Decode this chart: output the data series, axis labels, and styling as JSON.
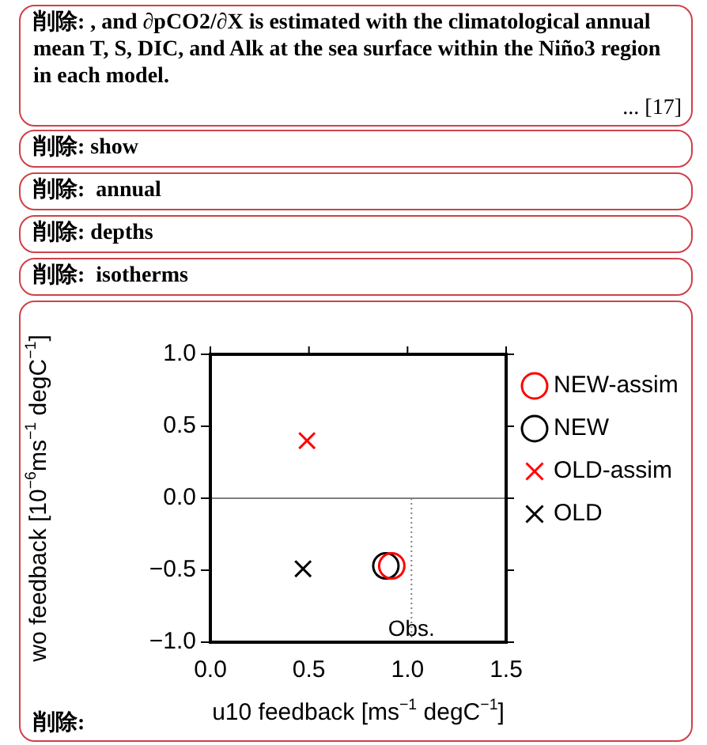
{
  "chart_data": {
    "type": "scatter",
    "xlabel": "u10 feedback [ms$^{−1}$ degC$^{−1}$]",
    "ylabel": "wo feedback [10$^{−6}$ms$^{−1}$ degC$^{−1}$]",
    "xlim": [
      0,
      1.5
    ],
    "xticks": [
      {
        "value": 0,
        "label": "0.0"
      },
      {
        "value": 0.5,
        "label": "0.5"
      },
      {
        "value": 1,
        "label": "1.0"
      },
      {
        "value": 1.5,
        "label": "1.5"
      }
    ],
    "ylim": [
      -1,
      1
    ],
    "yticks": [
      {
        "value": -1,
        "label": "−1.0"
      },
      {
        "value": -0.5,
        "label": "−0.5"
      },
      {
        "value": 0,
        "label": "0.0"
      },
      {
        "value": 0.5,
        "label": "0.5"
      },
      {
        "value": 1,
        "label": "1.0"
      }
    ],
    "grid": false,
    "legend": "right",
    "series": [
      {
        "name": "NEW-assim",
        "color": "#ff0000",
        "marker": "circle",
        "x": [
          0.92
        ],
        "values": [
          -0.47
        ]
      },
      {
        "name": "NEW",
        "color": "#000000",
        "marker": "circle",
        "x": [
          0.89
        ],
        "values": [
          -0.47
        ]
      },
      {
        "name": "OLD-assim",
        "color": "#ff0000",
        "marker": "cross",
        "x": [
          0.49
        ],
        "values": [
          0.4
        ]
      },
      {
        "name": "OLD",
        "color": "#000000",
        "marker": "cross",
        "x": [
          0.47
        ],
        "values": [
          -0.49
        ]
      }
    ],
    "ref_lines": [
      {
        "axis": "y",
        "value": 0,
        "color": "#808080",
        "line_style": "solid"
      },
      {
        "axis": "x",
        "value": 1.02,
        "label": "Obs.",
        "color": "#808080",
        "line_style": "dotted"
      }
    ],
    "annotations": [
      "削除: , and ∂pCO2/∂X is estimated with the climatological annual mean T, S, DIC, and Alk at the sea surface within the Niño3 region in each model.",
      "... [17]",
      "削除: show",
      "削除:  annual",
      "削除: depths",
      "削除:  isotherms",
      "削除:"
    ]
  }
}
